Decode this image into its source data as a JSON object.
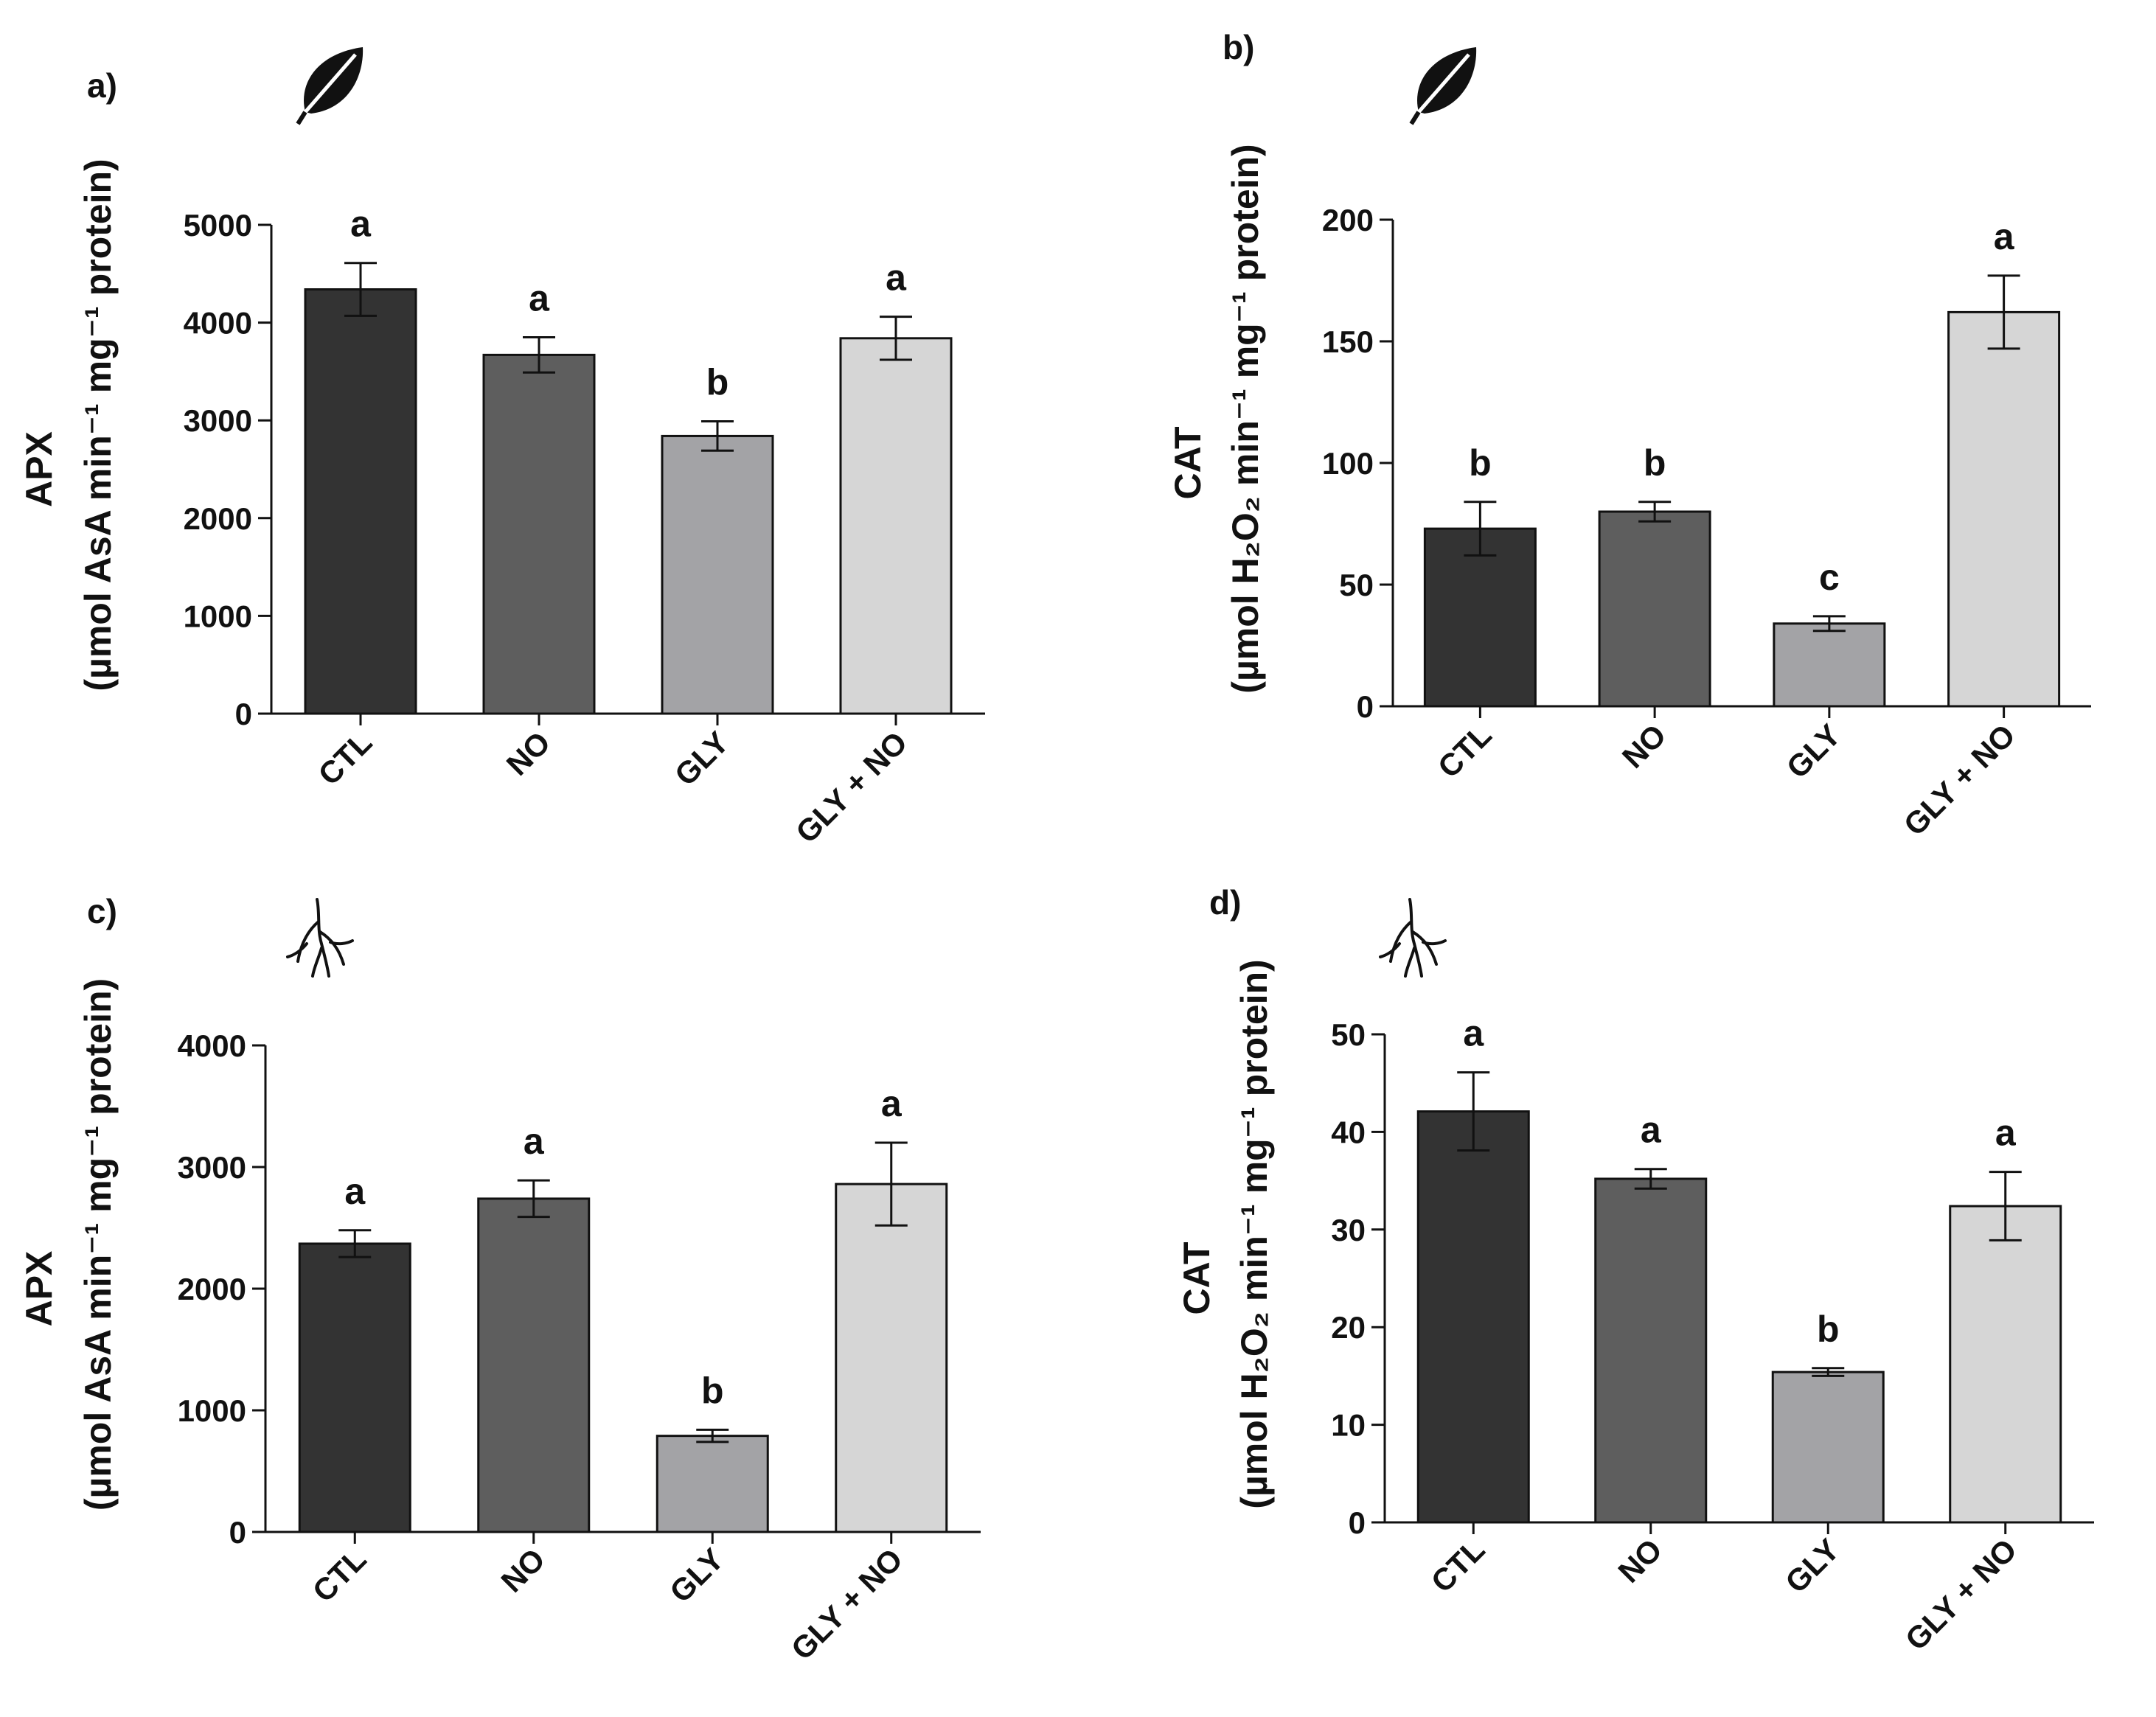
{
  "colors": {
    "CTL": "#333333",
    "NO": "#5e5e5e",
    "GLY": "#a3a3a6",
    "GLY + NO": "#d6d6d6",
    "axis": "#111111",
    "bar_edge": "#111111"
  },
  "chart_data": [
    {
      "panel": "a)",
      "organ_icon": "leaf-icon",
      "type": "bar",
      "ylabel_main": "APX",
      "ylabel_unit": "(µmol AsA min⁻¹ mg⁻¹ protein)",
      "categories": [
        "CTL",
        "NO",
        "GLY",
        "GLY + NO"
      ],
      "values": [
        4340,
        3670,
        2840,
        3840
      ],
      "errors": [
        270,
        180,
        150,
        220
      ],
      "letters": [
        "a",
        "a",
        "b",
        "a"
      ],
      "ylim": [
        0,
        5000
      ],
      "yticks": [
        0,
        1000,
        2000,
        3000,
        4000,
        5000
      ]
    },
    {
      "panel": "b)",
      "organ_icon": "leaf-icon",
      "type": "bar",
      "ylabel_main": "CAT",
      "ylabel_unit": "(µmol H₂O₂ min⁻¹ mg⁻¹ protein)",
      "categories": [
        "CTL",
        "NO",
        "GLY",
        "GLY + NO"
      ],
      "values": [
        73,
        80,
        34,
        162
      ],
      "errors": [
        11,
        4,
        3,
        15
      ],
      "letters": [
        "b",
        "b",
        "c",
        "a"
      ],
      "ylim": [
        0,
        200
      ],
      "yticks": [
        0,
        50,
        100,
        150,
        200
      ]
    },
    {
      "panel": "c)",
      "organ_icon": "root-icon",
      "type": "bar",
      "ylabel_main": "APX",
      "ylabel_unit": "(µmol AsA min⁻¹ mg⁻¹ protein)",
      "categories": [
        "CTL",
        "NO",
        "GLY",
        "GLY + NO"
      ],
      "values": [
        2370,
        2740,
        790,
        2860
      ],
      "errors": [
        110,
        150,
        50,
        340
      ],
      "letters": [
        "a",
        "a",
        "b",
        "a"
      ],
      "ylim": [
        0,
        4000
      ],
      "yticks": [
        0,
        1000,
        2000,
        3000,
        4000
      ]
    },
    {
      "panel": "d)",
      "organ_icon": "root-icon",
      "type": "bar",
      "ylabel_main": "CAT",
      "ylabel_unit": "(µmol H₂O₂ min⁻¹ mg⁻¹ protein)",
      "categories": [
        "CTL",
        "NO",
        "GLY",
        "GLY + NO"
      ],
      "values": [
        42.1,
        35.2,
        15.4,
        32.4
      ],
      "errors": [
        4.0,
        1.0,
        0.4,
        3.5
      ],
      "letters": [
        "a",
        "a",
        "b",
        "a"
      ],
      "ylim": [
        0,
        50
      ],
      "yticks": [
        0,
        10,
        20,
        30,
        40,
        50
      ]
    }
  ]
}
